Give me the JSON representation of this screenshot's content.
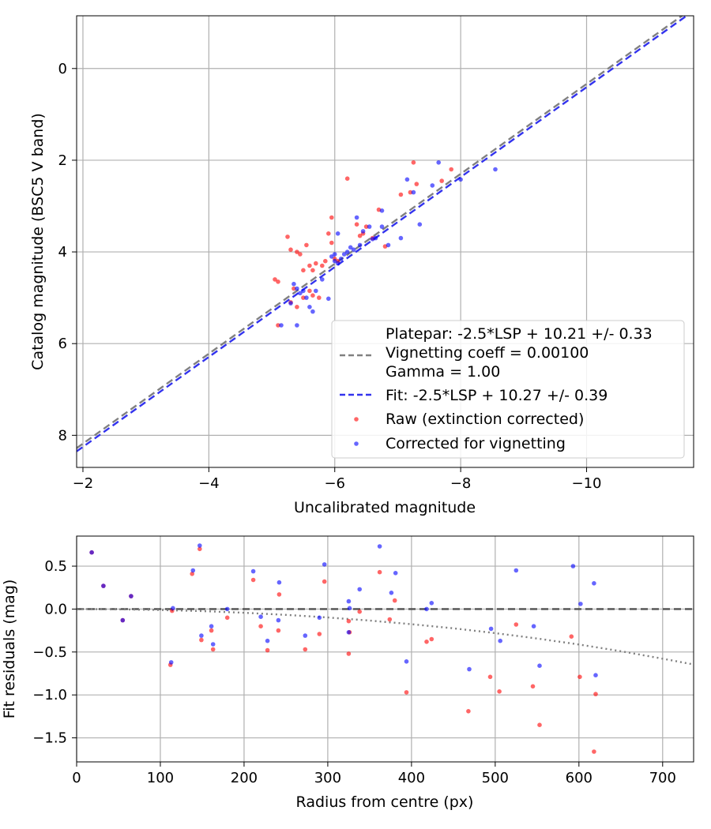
{
  "chart_data": [
    {
      "type": "scatter",
      "xlabel": "Uncalibrated magnitude",
      "ylabel": "Catalog magnitude (BSC5 V band)",
      "xlim": [
        -1.9,
        -11.7
      ],
      "ylim": [
        8.7,
        -1.15
      ],
      "xticks": [
        -2,
        -4,
        -6,
        -8,
        -10
      ],
      "xtick_labels": [
        "−2",
        "−4",
        "−6",
        "−8",
        "−10"
      ],
      "yticks": [
        0,
        2,
        4,
        6,
        8
      ],
      "ytick_labels": [
        "0",
        "2",
        "4",
        "6",
        "8"
      ],
      "grid": true,
      "legend_position": "lower-right",
      "legend": [
        {
          "kind": "line",
          "style": "dashed",
          "color": "#808080",
          "label": "Platepar: -2.5*LSP + 10.21 +/- 0.33"
        },
        {
          "kind": "text",
          "label": "Vignetting coeff = 0.00100"
        },
        {
          "kind": "text",
          "label": "Gamma = 1.00"
        },
        {
          "kind": "line",
          "style": "dashed",
          "color": "#3333ee",
          "label": "Fit: -2.5*LSP + 10.27 +/- 0.39"
        },
        {
          "kind": "marker",
          "color": "#ff0000",
          "label": "Raw (extinction corrected)"
        },
        {
          "kind": "marker",
          "color": "#0000ff",
          "label": "Corrected for vignetting"
        }
      ],
      "lines": [
        {
          "name": "Platepar",
          "color": "#808080",
          "style": "dashed",
          "x": [
            -1.9,
            -11.7
          ],
          "y": [
            8.28,
            -1.33
          ]
        },
        {
          "name": "Fit",
          "color": "#3333ee",
          "style": "dashed",
          "x": [
            -1.9,
            -11.7
          ],
          "y": [
            8.35,
            -1.26
          ]
        }
      ],
      "series": [
        {
          "name": "Raw (extinction corrected)",
          "color": "#ff0000",
          "x": [
            -5.05,
            -5.1,
            -5.25,
            -5.3,
            -5.35,
            -5.4,
            -5.45,
            -5.5,
            -5.55,
            -5.6,
            -5.65,
            -5.7,
            -5.75,
            -5.8,
            -5.85,
            -5.9,
            -5.95,
            -6.0,
            -6.05,
            -5.3,
            -5.4,
            -5.6,
            -5.65,
            -5.1,
            -6.2,
            -6.35,
            -6.45,
            -6.5,
            -6.6,
            -6.7,
            -6.8,
            -7.05,
            -7.25,
            -7.3,
            -7.7,
            -7.85,
            -7.2,
            -5.95,
            -5.5,
            -6.4
          ],
          "y": [
            4.6,
            4.65,
            3.67,
            3.95,
            4.8,
            4.0,
            4.05,
            4.4,
            3.85,
            4.3,
            4.4,
            4.25,
            5.0,
            4.3,
            4.2,
            3.6,
            3.8,
            4.15,
            4.2,
            5.1,
            5.2,
            4.85,
            4.95,
            5.6,
            2.4,
            3.4,
            3.6,
            3.45,
            3.7,
            3.08,
            3.88,
            2.75,
            2.05,
            2.52,
            2.45,
            2.2,
            2.7,
            3.25,
            5.0,
            3.65
          ]
        },
        {
          "name": "Corrected for vignetting",
          "color": "#0000ff",
          "x": [
            -5.15,
            -5.35,
            -5.4,
            -5.45,
            -5.55,
            -5.6,
            -5.7,
            -5.8,
            -5.95,
            -6.0,
            -6.05,
            -6.1,
            -6.15,
            -6.2,
            -6.25,
            -6.3,
            -6.35,
            -6.45,
            -6.55,
            -6.65,
            -6.75,
            -6.85,
            -7.05,
            -7.15,
            -7.35,
            -7.55,
            -7.65,
            -8.0,
            -8.55,
            -5.9,
            -6.0,
            -5.4,
            -5.65,
            -5.5,
            -6.75,
            -5.3,
            -6.05,
            -6.6,
            -6.4,
            -7.25
          ],
          "y": [
            5.6,
            4.7,
            5.6,
            4.9,
            5.0,
            5.2,
            4.85,
            4.6,
            4.1,
            4.2,
            4.25,
            4.15,
            4.05,
            4.0,
            3.9,
            3.95,
            3.25,
            3.55,
            3.45,
            3.7,
            3.1,
            3.85,
            3.7,
            2.42,
            3.4,
            2.55,
            2.05,
            2.42,
            2.2,
            5.02,
            4.05,
            4.8,
            5.3,
            4.85,
            3.45,
            5.12,
            3.6,
            3.72,
            3.85,
            2.7
          ]
        }
      ]
    },
    {
      "type": "scatter",
      "xlabel": "Radius from centre (px)",
      "ylabel": "Fit residuals (mag)",
      "xlim": [
        0,
        737
      ],
      "ylim": [
        -1.78,
        0.85
      ],
      "xticks": [
        0,
        100,
        200,
        300,
        400,
        500,
        600,
        700
      ],
      "xtick_labels": [
        "0",
        "100",
        "200",
        "300",
        "400",
        "500",
        "600",
        "700"
      ],
      "yticks": [
        0.5,
        0.0,
        -0.5,
        -1.0,
        -1.5
      ],
      "ytick_labels": [
        "0.5",
        "0.0",
        "−0.5",
        "−1.0",
        "−1.5"
      ],
      "grid": true,
      "lines": [
        {
          "name": "Zero level",
          "color": "#505050",
          "style": "dashed",
          "x": [
            0,
            737
          ],
          "y": [
            0,
            0
          ]
        },
        {
          "name": "Vignetting model",
          "color": "#808080",
          "style": "dotted",
          "x": [
            0,
            50,
            100,
            150,
            200,
            250,
            300,
            350,
            400,
            450,
            500,
            550,
            600,
            650,
            700,
            737
          ],
          "y": [
            0,
            -0.002,
            -0.011,
            -0.024,
            -0.043,
            -0.068,
            -0.098,
            -0.134,
            -0.176,
            -0.224,
            -0.28,
            -0.343,
            -0.413,
            -0.491,
            -0.578,
            -0.645
          ]
        }
      ],
      "series": [
        {
          "name": "Raw (extinction corrected)",
          "color": "#ff0000",
          "x": [
            18,
            32,
            55,
            65,
            112,
            114,
            138,
            147,
            149,
            161,
            163,
            180,
            211,
            220,
            228,
            241,
            242,
            273,
            290,
            296,
            325,
            325,
            326,
            338,
            362,
            374,
            380,
            394,
            418,
            424,
            468,
            494,
            505,
            525,
            545,
            553,
            591,
            601,
            618,
            620
          ],
          "y": [
            0.66,
            0.27,
            -0.13,
            0.15,
            -0.65,
            -0.02,
            0.41,
            0.7,
            -0.36,
            -0.25,
            -0.47,
            -0.1,
            0.34,
            -0.2,
            -0.48,
            -0.25,
            0.17,
            -0.47,
            -0.29,
            0.32,
            -0.52,
            -0.14,
            -0.27,
            -0.03,
            0.43,
            -0.12,
            0.1,
            -0.97,
            -0.38,
            -0.35,
            -1.19,
            -0.79,
            -0.96,
            -0.18,
            -0.9,
            -1.35,
            -0.32,
            -0.79,
            -1.66,
            -0.99
          ]
        },
        {
          "name": "Corrected for vignetting",
          "color": "#0000ff",
          "x": [
            18,
            32,
            55,
            65,
            113,
            115,
            139,
            147,
            149,
            161,
            163,
            180,
            211,
            220,
            228,
            241,
            242,
            273,
            290,
            296,
            325,
            325,
            326,
            338,
            362,
            376,
            381,
            394,
            418,
            424,
            469,
            495,
            506,
            525,
            546,
            553,
            593,
            602,
            618,
            620
          ],
          "y": [
            0.66,
            0.27,
            -0.13,
            0.15,
            -0.62,
            0.01,
            0.45,
            0.74,
            -0.31,
            -0.2,
            -0.41,
            0.0,
            0.44,
            -0.09,
            -0.37,
            -0.13,
            0.31,
            -0.31,
            -0.1,
            0.52,
            -0.27,
            0.09,
            0.01,
            0.23,
            0.73,
            0.19,
            0.42,
            -0.61,
            0.0,
            0.07,
            -0.7,
            -0.23,
            -0.37,
            0.45,
            -0.2,
            -0.66,
            0.5,
            0.06,
            0.3,
            -0.77
          ]
        }
      ]
    }
  ]
}
